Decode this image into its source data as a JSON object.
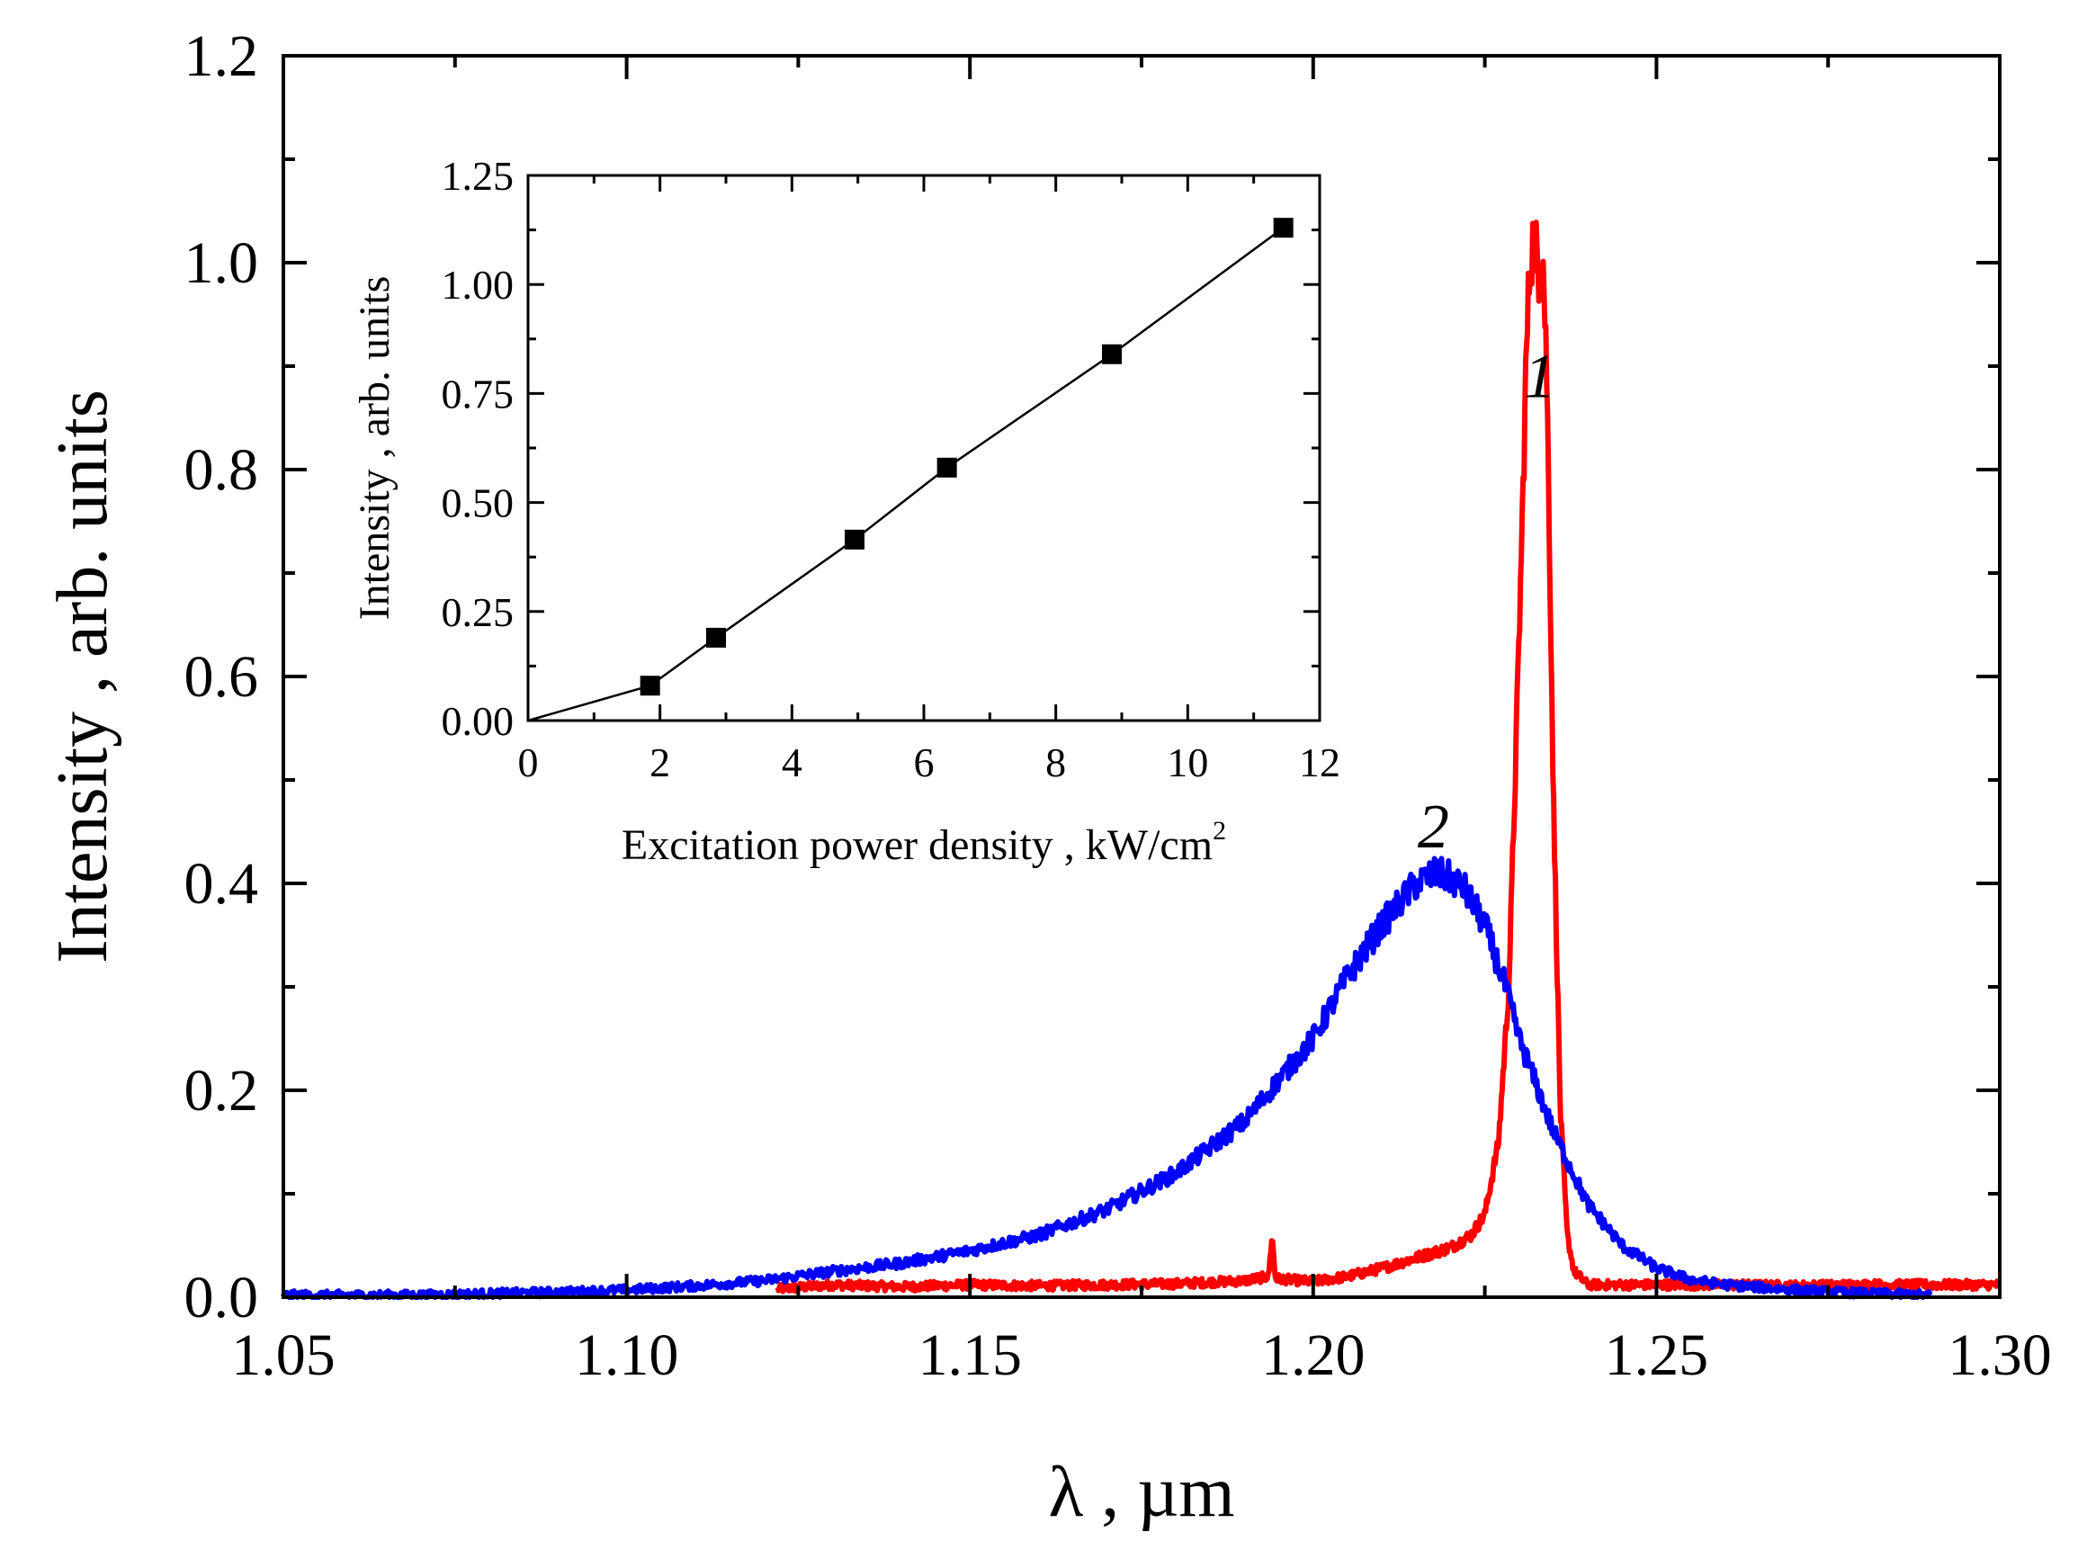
{
  "chart_data": [
    {
      "id": "main",
      "type": "line",
      "title": "",
      "xlabel": "λ , µm",
      "ylabel": "Intensity , arb. units",
      "xlim": [
        1.05,
        1.3
      ],
      "ylim": [
        0.0,
        1.2
      ],
      "x_ticks": [
        1.05,
        1.1,
        1.15,
        1.2,
        1.25,
        1.3
      ],
      "x_tick_labels": [
        "1.05",
        "1.10",
        "1.15",
        "1.20",
        "1.25",
        "1.30"
      ],
      "y_ticks": [
        0.0,
        0.2,
        0.4,
        0.6,
        0.8,
        1.0,
        1.2
      ],
      "y_tick_labels": [
        "0.0",
        "0.2",
        "0.4",
        "0.6",
        "0.8",
        "1.0",
        "1.2"
      ],
      "grid": false,
      "series": [
        {
          "name": "1",
          "label": "1",
          "label_at": [
            1.233,
            0.87
          ],
          "color": "#ff0000",
          "x": [
            1.122,
            1.13,
            1.14,
            1.15,
            1.16,
            1.17,
            1.18,
            1.19,
            1.1935,
            1.194,
            1.1945,
            1.2,
            1.205,
            1.21,
            1.215,
            1.22,
            1.223,
            1.225,
            1.227,
            1.2285,
            1.2295,
            1.2305,
            1.231,
            1.2315,
            1.232,
            1.2325,
            1.233,
            1.2335,
            1.234,
            1.2345,
            1.235,
            1.236,
            1.237,
            1.238,
            1.24,
            1.25,
            1.26,
            1.27,
            1.28,
            1.29,
            1.3
          ],
          "y": [
            0.008,
            0.012,
            0.01,
            0.012,
            0.011,
            0.012,
            0.013,
            0.016,
            0.02,
            0.06,
            0.018,
            0.015,
            0.02,
            0.028,
            0.038,
            0.048,
            0.06,
            0.08,
            0.15,
            0.3,
            0.52,
            0.76,
            0.9,
            0.99,
            1.02,
            1.01,
            0.99,
            1.0,
            0.9,
            0.7,
            0.48,
            0.18,
            0.06,
            0.025,
            0.012,
            0.012,
            0.012,
            0.011,
            0.012,
            0.012,
            0.012
          ]
        },
        {
          "name": "2",
          "label": "2",
          "label_at": [
            1.2175,
            0.435
          ],
          "color": "#0000ff",
          "x": [
            1.05,
            1.07,
            1.09,
            1.1,
            1.11,
            1.12,
            1.13,
            1.14,
            1.15,
            1.16,
            1.17,
            1.18,
            1.19,
            1.2,
            1.205,
            1.21,
            1.215,
            1.218,
            1.22,
            1.222,
            1.225,
            1.228,
            1.23,
            1.235,
            1.24,
            1.245,
            1.25,
            1.255,
            1.26,
            1.27,
            1.28,
            1.29
          ],
          "y": [
            0.002,
            0.002,
            0.005,
            0.007,
            0.011,
            0.016,
            0.025,
            0.033,
            0.045,
            0.06,
            0.085,
            0.12,
            0.17,
            0.25,
            0.31,
            0.36,
            0.4,
            0.41,
            0.405,
            0.395,
            0.36,
            0.3,
            0.25,
            0.16,
            0.09,
            0.05,
            0.028,
            0.017,
            0.012,
            0.007,
            0.004,
            0.002
          ]
        }
      ]
    },
    {
      "id": "inset",
      "type": "line",
      "title": "",
      "xlabel": "Excitation power density , kW/cm",
      "xlabel_superscript": "2",
      "ylabel": "Intensity , arb. units",
      "xlim": [
        0,
        12
      ],
      "ylim": [
        0.0,
        1.25
      ],
      "x_ticks": [
        0,
        2,
        4,
        6,
        8,
        10,
        12
      ],
      "x_tick_labels": [
        "0",
        "2",
        "4",
        "6",
        "8",
        "10",
        "12"
      ],
      "y_ticks": [
        0.0,
        0.25,
        0.5,
        0.75,
        1.0,
        1.25
      ],
      "y_tick_labels": [
        "0.00",
        "0.25",
        "0.50",
        "0.75",
        "1.00",
        "1.25"
      ],
      "grid": false,
      "series": [
        {
          "name": "intensity-vs-power",
          "color": "#000000",
          "marker": "square",
          "x": [
            0.0,
            1.85,
            2.85,
            4.95,
            6.35,
            8.85,
            11.45
          ],
          "y": [
            0.0,
            0.08,
            0.19,
            0.415,
            0.58,
            0.84,
            1.13
          ],
          "marker_shown": [
            false,
            true,
            true,
            true,
            true,
            true,
            true
          ]
        }
      ]
    }
  ]
}
